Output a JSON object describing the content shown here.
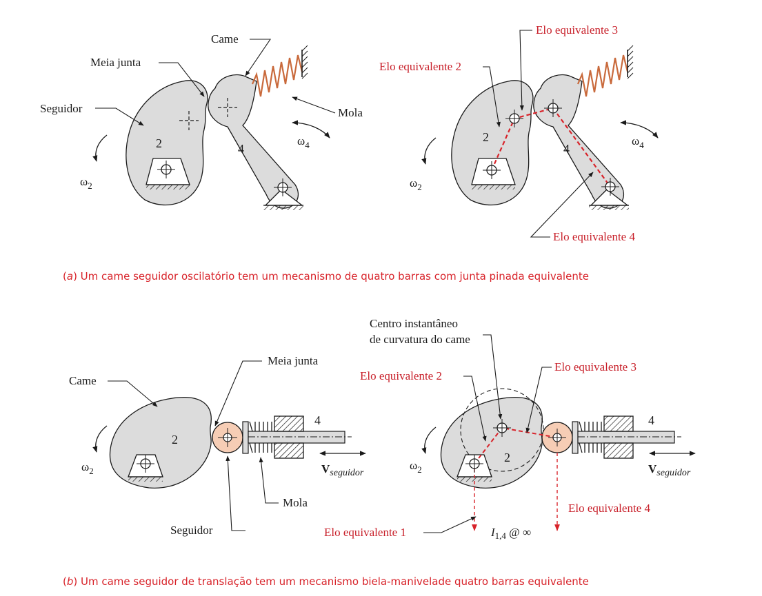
{
  "figure_a": {
    "left": {
      "came": "Came",
      "meia_junta": "Meia junta",
      "seguidor": "Seguidor",
      "mola": "Mola",
      "num_2": "2",
      "num_4": "4",
      "omega2": "ω",
      "omega2_sub": "2",
      "omega4": "ω",
      "omega4_sub": "4"
    },
    "right": {
      "elo3": "Elo equivalente 3",
      "elo2": "Elo equivalente 2",
      "elo4": "Elo equivalente 4",
      "num_2": "2",
      "num_4": "4",
      "omega2": "ω",
      "omega2_sub": "2",
      "omega4": "ω",
      "omega4_sub": "4"
    },
    "caption_prefix": "(",
    "caption_letter": "a",
    "caption_text": ") Um came seguidor oscilatório tem um mecanismo de quatro barras com junta pinada equivalente"
  },
  "figure_b": {
    "left": {
      "came": "Came",
      "meia_junta": "Meia junta",
      "seguidor": "Seguidor",
      "mola": "Mola",
      "num_2": "2",
      "num_4": "4",
      "omega2": "ω",
      "omega2_sub": "2",
      "v": "V",
      "v_sub": "seguidor"
    },
    "right": {
      "centro_line1": "Centro instantâneo",
      "centro_line2": "de curvatura do came",
      "elo2": "Elo equivalente 2",
      "elo3": "Elo equivalente 3",
      "elo4": "Elo equivalente 4",
      "elo1": "Elo equivalente 1",
      "num_2": "2",
      "num_4": "4",
      "omega2": "ω",
      "omega2_sub": "2",
      "v": "V",
      "v_sub": "seguidor",
      "i14": "I",
      "i14_sub": "1,4",
      "i14_rest": " @ ∞"
    },
    "caption_prefix": "(",
    "caption_letter": "b",
    "caption_text": ") Um came seguidor de translação tem um mecanismo biela-manivelade quatro barras equivalente"
  },
  "colors": {
    "part_fill": "#dcdcdc",
    "roller_fill": "#f6cdb5",
    "spring": "#c96a3c",
    "red": "#d8232a",
    "ink": "#1a1a1a"
  }
}
